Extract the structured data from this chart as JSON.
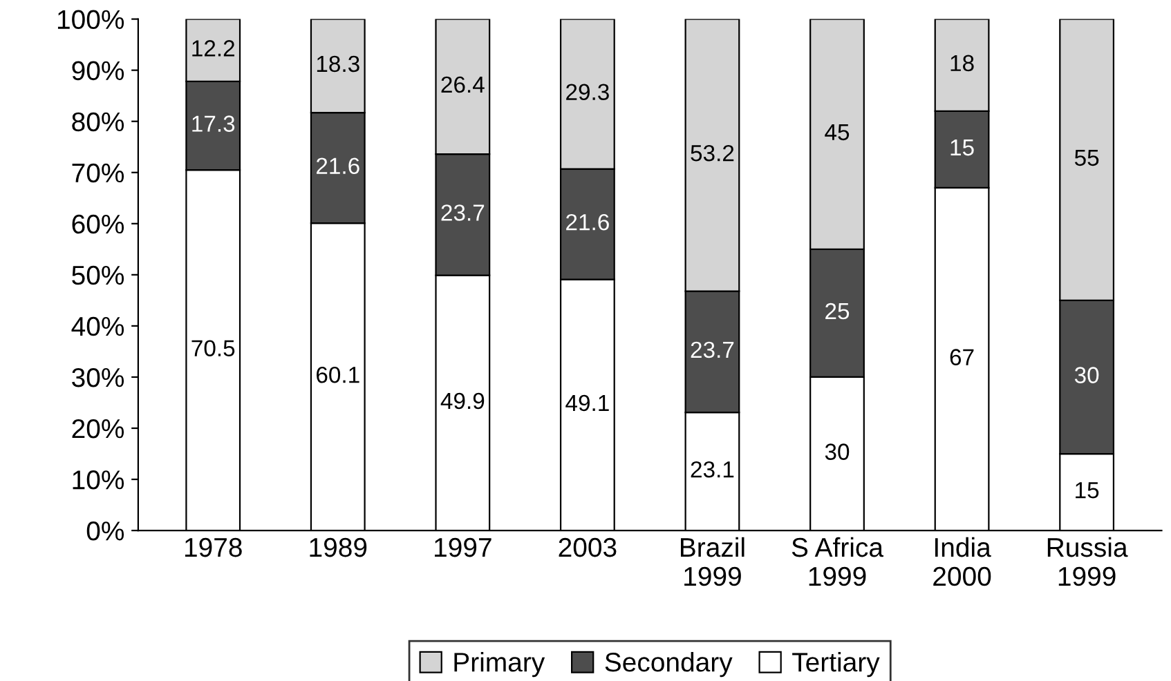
{
  "chart_data": {
    "type": "bar",
    "stacked": true,
    "categories": [
      "1978",
      "1989",
      "1997",
      "2003",
      "Brazil\n1999",
      "S Africa\n1999",
      "India\n2000",
      "Russia\n1999"
    ],
    "series": [
      {
        "name": "Tertiary",
        "color": "#ffffff",
        "values": [
          70.5,
          60.1,
          49.9,
          49.1,
          23.1,
          30,
          67,
          15
        ]
      },
      {
        "name": "Secondary",
        "color": "#4d4d4d",
        "values": [
          17.3,
          21.6,
          23.7,
          21.6,
          23.7,
          25,
          15,
          30
        ]
      },
      {
        "name": "Primary",
        "color": "#d4d4d4",
        "values": [
          12.2,
          18.3,
          26.4,
          29.3,
          53.2,
          45,
          18,
          55
        ]
      }
    ],
    "ylim": [
      0,
      100
    ],
    "yticks": [
      {
        "value": 0,
        "label": "0%"
      },
      {
        "value": 10,
        "label": "10%"
      },
      {
        "value": 20,
        "label": "20%"
      },
      {
        "value": 30,
        "label": "30%"
      },
      {
        "value": 40,
        "label": "40%"
      },
      {
        "value": 50,
        "label": "50%"
      },
      {
        "value": 60,
        "label": "60%"
      },
      {
        "value": 70,
        "label": "70%"
      },
      {
        "value": 80,
        "label": "80%"
      },
      {
        "value": 90,
        "label": "90%"
      },
      {
        "value": 100,
        "label": "100%"
      }
    ],
    "data_labels": true,
    "grid": false,
    "legend": "bottom"
  }
}
